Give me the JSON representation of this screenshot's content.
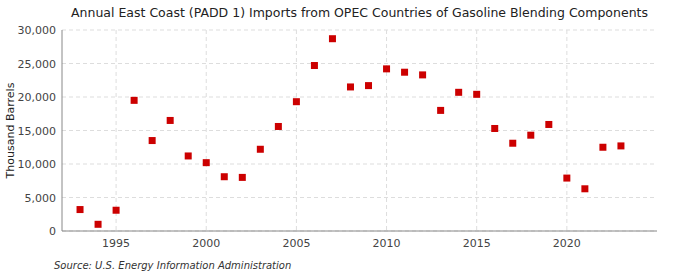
{
  "chart_data": {
    "type": "scatter",
    "title": "Annual East Coast (PADD 1) Imports from OPEC Countries of Gasoline Blending Components",
    "ylabel": "Thousand Barrels",
    "annotations": [
      "Source: U.S. Energy Information Administration"
    ],
    "x": [
      1993,
      1994,
      1995,
      1996,
      1997,
      1998,
      1999,
      2000,
      2001,
      2002,
      2003,
      2004,
      2005,
      2006,
      2007,
      2008,
      2009,
      2010,
      2011,
      2012,
      2013,
      2014,
      2015,
      2016,
      2017,
      2018,
      2019,
      2020,
      2021,
      2022,
      2023
    ],
    "values": [
      3200,
      1000,
      3100,
      19500,
      13500,
      16500,
      11200,
      10200,
      8100,
      8000,
      12200,
      15600,
      19300,
      24700,
      28700,
      21500,
      21700,
      24200,
      23700,
      23300,
      18000,
      20700,
      20400,
      15300,
      13100,
      14300,
      15900,
      7900,
      6300,
      12500,
      12700
    ],
    "color": "#cc0000",
    "marker": "square",
    "grid": true,
    "xlim": [
      1992,
      2025
    ],
    "ylim": [
      0,
      30000
    ],
    "xticks": [
      1995,
      2000,
      2005,
      2010,
      2015,
      2020
    ],
    "yticks": [
      0,
      {
        "value": 5000,
        "label": "5,000"
      },
      {
        "value": 10000,
        "label": "10,000"
      },
      {
        "value": 15000,
        "label": "15,000"
      },
      {
        "value": 20000,
        "label": "20,000"
      },
      {
        "value": 25000,
        "label": "25,000"
      },
      {
        "value": 30000,
        "label": "30,000"
      }
    ]
  }
}
